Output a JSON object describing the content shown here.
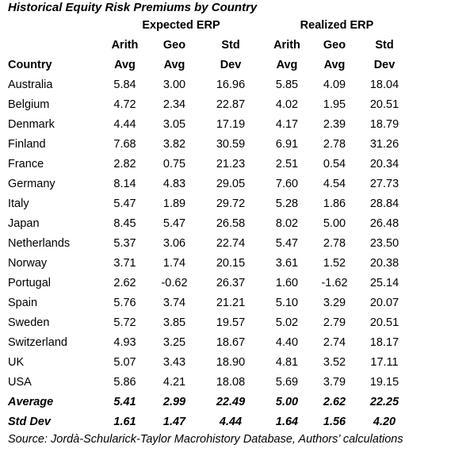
{
  "title": "Historical Equity Risk Premiums by Country",
  "groups": {
    "expected": "Expected ERP",
    "realized": "Realized ERP"
  },
  "header_top": [
    "Arith",
    "Geo",
    "Std",
    "Arith",
    "Geo",
    "Std"
  ],
  "header_bottom": [
    "Country",
    "Avg",
    "Avg",
    "Dev",
    "Avg",
    "Avg",
    "Dev"
  ],
  "rows": [
    [
      "Australia",
      "5.84",
      "3.00",
      "16.96",
      "5.85",
      "4.09",
      "18.04"
    ],
    [
      "Belgium",
      "4.72",
      "2.34",
      "22.87",
      "4.02",
      "1.95",
      "20.51"
    ],
    [
      "Denmark",
      "4.44",
      "3.05",
      "17.19",
      "4.17",
      "2.39",
      "18.79"
    ],
    [
      "Finland",
      "7.68",
      "3.82",
      "30.59",
      "6.91",
      "2.78",
      "31.26"
    ],
    [
      "France",
      "2.82",
      "0.75",
      "21.23",
      "2.51",
      "0.54",
      "20.34"
    ],
    [
      "Germany",
      "8.14",
      "4.83",
      "29.05",
      "7.60",
      "4.54",
      "27.73"
    ],
    [
      "Italy",
      "5.47",
      "1.89",
      "29.72",
      "5.28",
      "1.86",
      "28.84"
    ],
    [
      "Japan",
      "8.45",
      "5.47",
      "26.58",
      "8.02",
      "5.00",
      "26.48"
    ],
    [
      "Netherlands",
      "5.37",
      "3.06",
      "22.74",
      "5.47",
      "2.78",
      "23.50"
    ],
    [
      "Norway",
      "3.71",
      "1.74",
      "20.15",
      "3.61",
      "1.52",
      "20.38"
    ],
    [
      "Portugal",
      "2.62",
      "-0.62",
      "26.37",
      "1.60",
      "-1.62",
      "25.14"
    ],
    [
      "Spain",
      "5.76",
      "3.74",
      "21.21",
      "5.10",
      "3.29",
      "20.07"
    ],
    [
      "Sweden",
      "5.72",
      "3.85",
      "19.57",
      "5.02",
      "2.79",
      "20.51"
    ],
    [
      "Switzerland",
      "4.93",
      "3.25",
      "18.67",
      "4.40",
      "2.74",
      "18.17"
    ],
    [
      "UK",
      "5.07",
      "3.43",
      "18.90",
      "4.81",
      "3.52",
      "17.11"
    ],
    [
      "USA",
      "5.86",
      "4.21",
      "18.08",
      "5.69",
      "3.79",
      "19.15"
    ]
  ],
  "summary": [
    [
      "Average",
      "5.41",
      "2.99",
      "22.49",
      "5.00",
      "2.62",
      "22.25"
    ],
    [
      "Std Dev",
      "1.61",
      "1.47",
      "4.44",
      "1.64",
      "1.56",
      "4.20"
    ]
  ],
  "source": "Source: Jordà-Schularick-Taylor Macrohistory Database, Authors’ calculations"
}
